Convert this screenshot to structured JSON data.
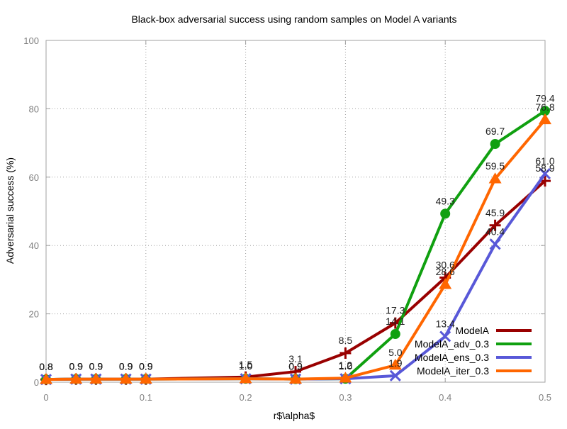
{
  "chart_data": {
    "type": "line",
    "title": "Black-box adversarial success using random samples on Model A variants",
    "xlabel": "r$\\alpha$",
    "ylabel": "Adversarial success (%)",
    "xlim": [
      0,
      0.5
    ],
    "ylim": [
      0,
      100
    ],
    "x_ticks": [
      0,
      0.1,
      0.2,
      0.3,
      0.4,
      0.5
    ],
    "x_tick_labels": [
      "0",
      "0.1",
      "0.2",
      "0.3",
      "0.4",
      "0.5"
    ],
    "y_ticks": [
      0,
      20,
      40,
      60,
      80,
      100
    ],
    "y_tick_labels": [
      "0",
      "20",
      "40",
      "60",
      "80",
      "100"
    ],
    "grid": true,
    "legend_position": "bottom-right",
    "x": [
      0,
      0.03,
      0.05,
      0.08,
      0.1,
      0.2,
      0.25,
      0.3,
      0.35,
      0.4,
      0.45,
      0.5
    ],
    "series": [
      {
        "name": "ModelA",
        "color": "#990000",
        "marker": "plus",
        "values": [
          0.8,
          0.9,
          0.9,
          0.9,
          0.9,
          1.5,
          3.1,
          8.5,
          17.3,
          30.6,
          45.9,
          58.9
        ],
        "labels": [
          "0.8",
          "0.9",
          "0.9",
          "0.9",
          "0.9",
          "1.5",
          "3.1",
          "8.5",
          "17.3",
          "30.6",
          "45.9",
          "58.9"
        ]
      },
      {
        "name": "ModelA_adv_0.3",
        "color": "#10a010",
        "marker": "circle",
        "values": [
          0.8,
          0.9,
          0.9,
          0.9,
          0.9,
          1.0,
          0.9,
          1.0,
          14.1,
          49.3,
          69.7,
          79.4
        ],
        "labels": [
          "0.8",
          "0.9",
          "0.9",
          "0.9",
          "0.9",
          "1.0",
          "0.9",
          "1.0",
          "14.1",
          "49.3",
          "69.7",
          "79.4"
        ]
      },
      {
        "name": "ModelA_ens_0.3",
        "color": "#5858d8",
        "marker": "x",
        "values": [
          0.8,
          0.9,
          0.9,
          0.9,
          0.9,
          1.0,
          0.9,
          1.0,
          1.9,
          13.4,
          40.4,
          61.0
        ],
        "labels": [
          "0.8",
          "0.9",
          "0.9",
          "0.9",
          "0.9",
          "1.0",
          "0.9",
          "1.0",
          "1.9",
          "13.4",
          "40.4",
          "61.0"
        ]
      },
      {
        "name": "ModelA_iter_0.3",
        "color": "#ff6600",
        "marker": "triangle",
        "values": [
          0.8,
          0.9,
          0.9,
          0.9,
          0.9,
          1.0,
          0.9,
          1.2,
          5.0,
          28.6,
          59.5,
          76.8
        ],
        "labels": [
          "0.8",
          "0.9",
          "0.9",
          "0.9",
          "0.9",
          "1.0",
          "0.9",
          "1.2",
          "5.0",
          "28.6",
          "59.5",
          "76.8"
        ]
      }
    ]
  }
}
